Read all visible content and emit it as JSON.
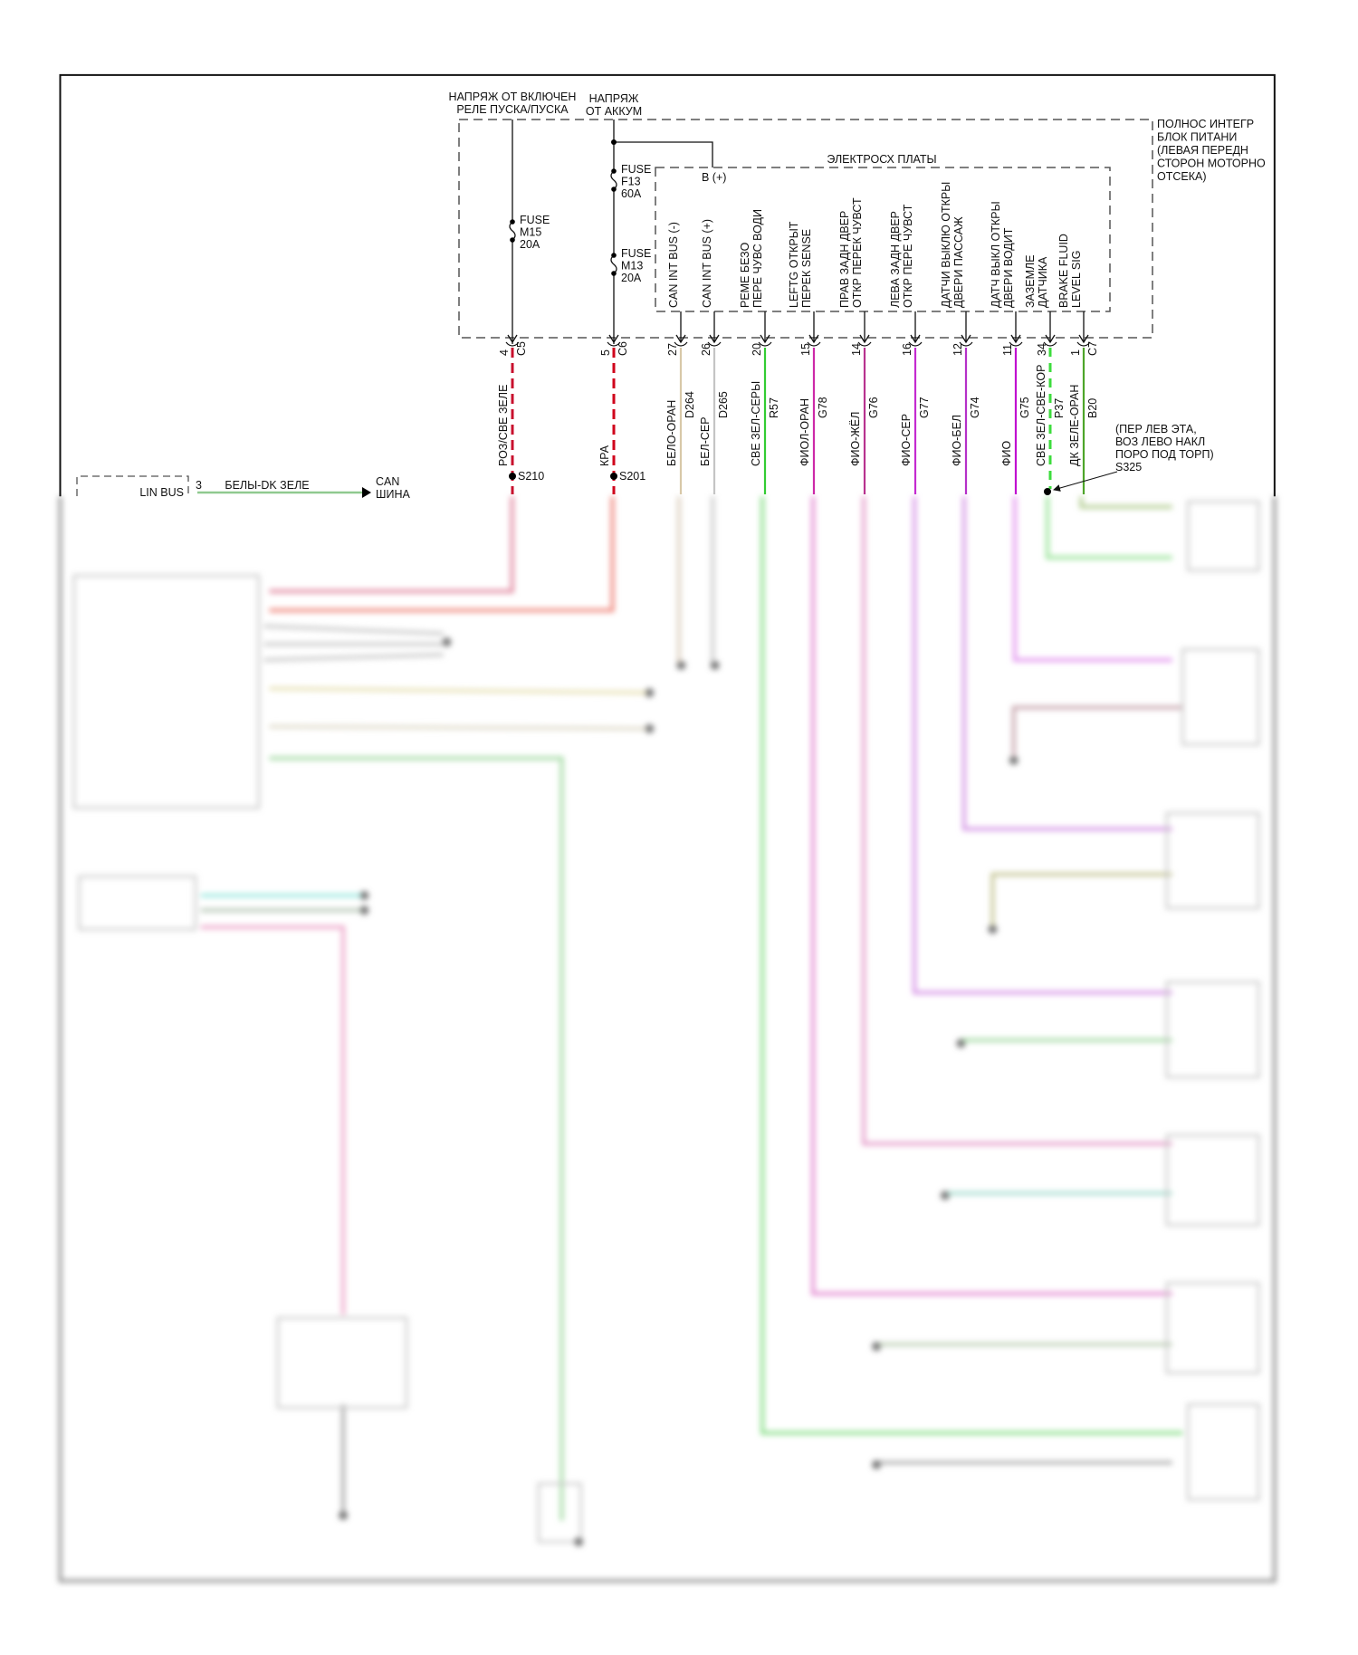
{
  "power_block": {
    "label_lines": [
      "ПОЛНОС ИНТЕГР",
      "БЛОК ПИТАНИ",
      "(ЛЕВАЯ ПЕРЕДН",
      "СТОРОН МОТОРНО",
      "ОТСЕКА)"
    ],
    "feed_ignition": [
      "НАПРЯЖ ОТ ВКЛЮЧЕН",
      "РЕЛЕ ПУСКА/ПУСКА"
    ],
    "feed_battery": [
      "НАПРЯЖ",
      "ОТ АККУМ"
    ],
    "fuses": [
      {
        "lines": [
          "FUSE",
          "M15",
          "20A"
        ]
      },
      {
        "lines": [
          "FUSE",
          "F13",
          "60A"
        ]
      },
      {
        "lines": [
          "FUSE",
          "M13",
          "20A"
        ]
      }
    ],
    "inner_box_label": "ЭЛЕКТРОСХ ПЛАТЫ",
    "b_plus": "B (+)"
  },
  "circuits": [
    {
      "pin": "4",
      "connector": "C5",
      "func": [],
      "color_label": "РОЗ/СВЕ ЗЕЛЕ",
      "code": "",
      "splice": "S210",
      "wire_color": "#c8102e",
      "dashed": true
    },
    {
      "pin": "5",
      "connector": "C6",
      "func": [],
      "color_label": "КРА",
      "code": "",
      "splice": "S201",
      "wire_color": "#d0021b",
      "dashed": true
    },
    {
      "pin": "27",
      "connector": "",
      "func": [
        "CAN INT BUS (-)"
      ],
      "color_label": "БЕЛО-ОРАН",
      "code": "D264",
      "wire_color": "#d8c8a8",
      "dashed": false
    },
    {
      "pin": "26",
      "connector": "",
      "func": [
        "CAN INT BUS (+)"
      ],
      "color_label": "БЕЛ-СЕР",
      "code": "D265",
      "wire_color": "#c4c4c4",
      "dashed": false
    },
    {
      "pin": "20",
      "connector": "",
      "func": [
        "РЕМЕ БЕЗО",
        "ПЕРЕ ЧУВС ВОДИ"
      ],
      "color_label": "СВЕ ЗЕЛ-СЕРЫ",
      "code": "R57",
      "wire_color": "#33cc33",
      "dashed": false
    },
    {
      "pin": "15",
      "connector": "",
      "func": [
        "LEFTG ОТКРЫТ",
        "ПЕРЕК SENSE"
      ],
      "color_label": "ФИОЛ-ОРАН",
      "code": "G78",
      "wire_color": "#cc2aa8",
      "dashed": false
    },
    {
      "pin": "14",
      "connector": "",
      "func": [
        "ПРАВ ЗАДН ДВЕР",
        "ОТКР ПЕРЕК ЧУВСТ"
      ],
      "color_label": "ФИО-ЖЁЛ",
      "code": "G76",
      "wire_color": "#b8338f",
      "dashed": false
    },
    {
      "pin": "16",
      "connector": "",
      "func": [
        "ЛЕВА ЗАДН ДВЕР",
        "ОТКР ПЕРЕ ЧУВСТ"
      ],
      "color_label": "ФИО-СЕР",
      "code": "G77",
      "wire_color": "#c42ad0",
      "dashed": false
    },
    {
      "pin": "12",
      "connector": "",
      "func": [
        "ДАТЧИ ВЫКЛЮ ОТКРЫ",
        "ДВЕРИ ПАССАЖ"
      ],
      "color_label": "ФИО-БЕЛ",
      "code": "G74",
      "wire_color": "#b530c8",
      "dashed": false
    },
    {
      "pin": "11",
      "connector": "",
      "func": [
        "ДАТЧ ВЫКЛ ОТКРЫ",
        "ДВЕРИ ВОДИТ"
      ],
      "color_label": "ФИО",
      "code": "G75",
      "wire_color": "#c010d0",
      "dashed": false
    },
    {
      "pin": "34",
      "connector": "",
      "func": [
        "ЗАЗЕМЛЕ",
        "ДАТЧИКА"
      ],
      "color_label": "СВЕ ЗЕЛ-СВЕ-КОР",
      "code": "P37",
      "wire_color": "#3ddc3d",
      "dashed": true
    },
    {
      "pin": "1",
      "connector": "C7",
      "func": [
        "BRAKE FLUID",
        "LEVEL SIG"
      ],
      "color_label": "ДК ЗЕЛЕ-ОРАН",
      "code": "B20",
      "wire_color": "#4ea52a",
      "dashed": false
    }
  ],
  "splice_s325": {
    "lines": [
      "(ПЕР ЛЕВ ЭТА,",
      "ВОЗ ЛЕВО НАКЛ",
      "ПОРО ПОД ТОРП)",
      "S325"
    ]
  },
  "lin_bus": {
    "label": "LIN BUS",
    "pin": "3",
    "wire_label": "БЕЛЫ-DK ЗЕЛЕ",
    "dest": [
      "CAN",
      "ШИНА"
    ],
    "wire_color": "#8fc98f"
  }
}
